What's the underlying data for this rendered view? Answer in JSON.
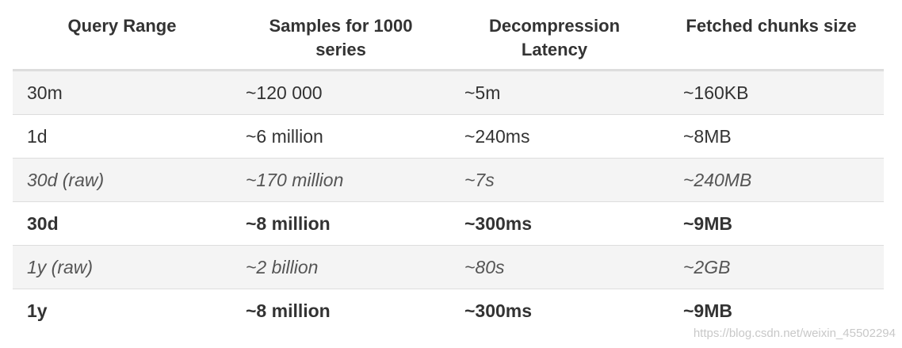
{
  "table": {
    "headers": [
      [
        "Query Range"
      ],
      [
        "Samples for 1000",
        "series"
      ],
      [
        "Decompression",
        "Latency"
      ],
      [
        "Fetched chunks size"
      ]
    ],
    "rows": [
      {
        "style": "normal",
        "cells": [
          "30m",
          "~120 000",
          "~5m",
          "~160KB"
        ]
      },
      {
        "style": "normal",
        "cells": [
          "1d",
          "~6 million",
          "~240ms",
          "~8MB"
        ]
      },
      {
        "style": "italic",
        "cells": [
          "30d (raw)",
          "~170 million",
          "~7s",
          "~240MB"
        ]
      },
      {
        "style": "bold",
        "cells": [
          "30d",
          "~8 million",
          "~300ms",
          "~9MB"
        ]
      },
      {
        "style": "italic",
        "cells": [
          "1y (raw)",
          "~2 billion",
          "~80s",
          "~2GB"
        ]
      },
      {
        "style": "bold",
        "cells": [
          "1y",
          "~8 million",
          "~300ms",
          "~9MB"
        ]
      }
    ]
  },
  "watermark": "https://blog.csdn.net/weixin_45502294"
}
